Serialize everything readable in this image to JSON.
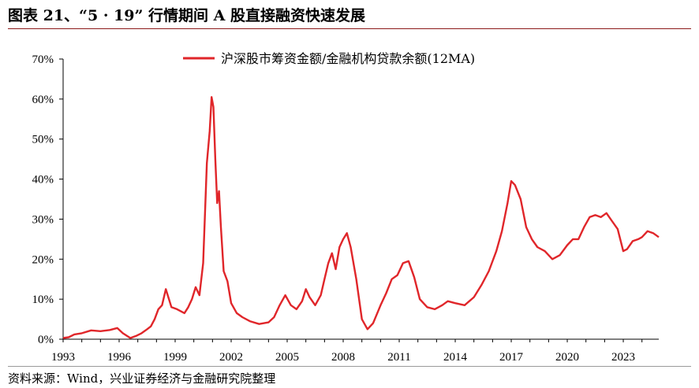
{
  "header": {
    "title": "图表 21、“5 · 19” 行情期间 A 股直接融资快速发展"
  },
  "footer": {
    "source": "资料来源：Wind，兴业证券经济与金融研究院整理"
  },
  "chart_data": {
    "type": "line",
    "title": "图表 21、“5 · 19” 行情期间 A 股直接融资快速发展",
    "xlabel": "",
    "ylabel": "",
    "xlim": [
      1993,
      2024.9
    ],
    "ylim": [
      0,
      70
    ],
    "yticks": [
      "0%",
      "10%",
      "20%",
      "30%",
      "40%",
      "50%",
      "60%",
      "70%"
    ],
    "xticks": [
      "1993",
      "1996",
      "1999",
      "2002",
      "2005",
      "2008",
      "2011",
      "2014",
      "2017",
      "2020",
      "2023"
    ],
    "grid": false,
    "legend": "top-center",
    "line_color": "#e0262a",
    "series": [
      {
        "name": "沪深股市筹资金额/金融机构贷款余额(12MA)",
        "x": [
          1993.0,
          1993.3,
          1993.6,
          1994.0,
          1994.5,
          1995.0,
          1995.5,
          1995.9,
          1996.2,
          1996.6,
          1996.9,
          1997.2,
          1997.5,
          1997.7,
          1997.9,
          1998.1,
          1998.3,
          1998.5,
          1998.8,
          1999.1,
          1999.3,
          1999.5,
          1999.7,
          1999.9,
          2000.1,
          2000.3,
          2000.5,
          2000.7,
          2000.85,
          2000.95,
          2001.05,
          2001.15,
          2001.25,
          2001.35,
          2001.45,
          2001.6,
          2001.8,
          2002.0,
          2002.3,
          2002.6,
          2003.0,
          2003.5,
          2004.0,
          2004.3,
          2004.6,
          2004.9,
          2005.2,
          2005.5,
          2005.8,
          2006.0,
          2006.2,
          2006.5,
          2006.8,
          2007.0,
          2007.2,
          2007.4,
          2007.6,
          2007.8,
          2008.0,
          2008.2,
          2008.4,
          2008.7,
          2009.0,
          2009.3,
          2009.6,
          2010.0,
          2010.3,
          2010.6,
          2010.9,
          2011.2,
          2011.5,
          2011.8,
          2012.1,
          2012.5,
          2012.9,
          2013.3,
          2013.6,
          2014.0,
          2014.5,
          2015.0,
          2015.4,
          2015.8,
          2016.2,
          2016.5,
          2016.8,
          2017.0,
          2017.2,
          2017.5,
          2017.8,
          2018.1,
          2018.4,
          2018.8,
          2019.2,
          2019.6,
          2020.0,
          2020.3,
          2020.6,
          2020.9,
          2021.2,
          2021.5,
          2021.8,
          2022.1,
          2022.4,
          2022.7,
          2023.0,
          2023.2,
          2023.5,
          2023.8,
          2024.0,
          2024.3,
          2024.6,
          2024.9
        ],
        "values": [
          0.3,
          0.5,
          1.2,
          1.5,
          2.2,
          2.0,
          2.3,
          2.8,
          1.5,
          0.3,
          0.8,
          1.5,
          2.5,
          3.2,
          5.0,
          7.5,
          8.5,
          12.5,
          8.0,
          7.5,
          7.0,
          6.5,
          8.0,
          10.0,
          13.0,
          11.0,
          19.0,
          44.0,
          52.0,
          60.5,
          58.0,
          45.0,
          34.0,
          37.0,
          28.0,
          17.0,
          14.5,
          9.0,
          6.5,
          5.5,
          4.5,
          3.8,
          4.2,
          5.5,
          8.5,
          11.0,
          8.5,
          7.5,
          9.5,
          12.5,
          10.5,
          8.5,
          11.0,
          15.0,
          19.0,
          21.5,
          17.5,
          23.0,
          25.0,
          26.5,
          23.0,
          15.0,
          5.0,
          2.5,
          4.0,
          8.5,
          11.5,
          15.0,
          16.0,
          19.0,
          19.5,
          15.5,
          10.0,
          8.0,
          7.5,
          8.5,
          9.5,
          9.0,
          8.5,
          10.5,
          13.5,
          17.0,
          22.0,
          27.0,
          34.0,
          39.5,
          38.5,
          35.0,
          28.0,
          25.0,
          23.0,
          22.0,
          20.0,
          21.0,
          23.5,
          25.0,
          25.0,
          28.0,
          30.5,
          31.0,
          30.5,
          31.5,
          29.5,
          27.5,
          22.0,
          22.5,
          24.5,
          25.0,
          25.5,
          27.0,
          26.5,
          25.5
        ]
      }
    ]
  }
}
